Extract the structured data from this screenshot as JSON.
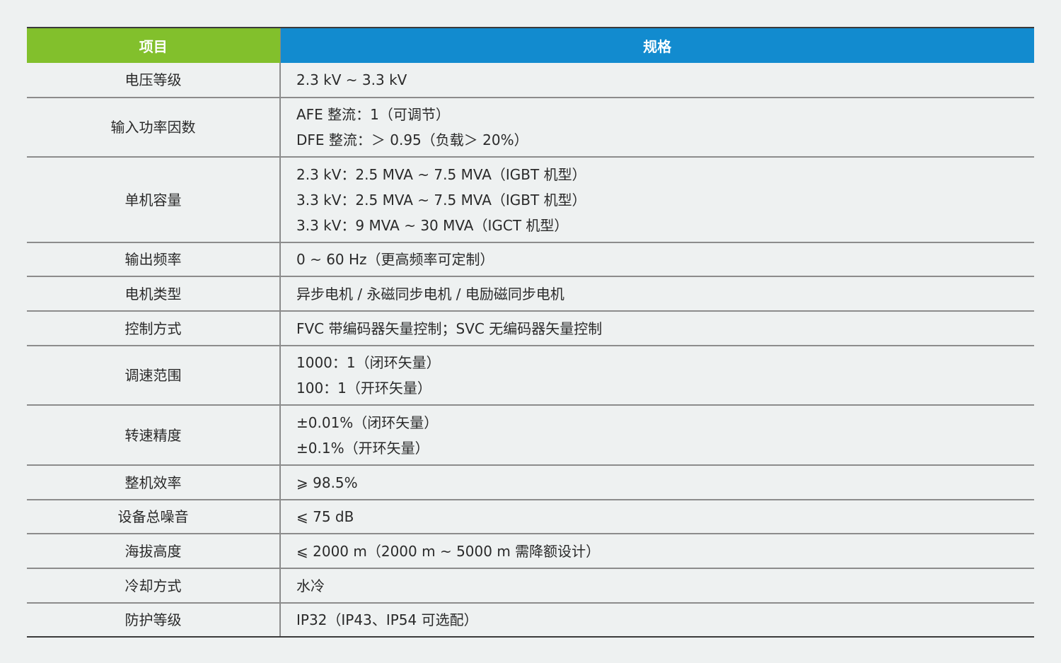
{
  "header": {
    "item": "项目",
    "spec": "规格"
  },
  "colors": {
    "item_header": "#82c02c",
    "spec_header": "#128bcf",
    "background": "#eef1f1"
  },
  "rows": [
    {
      "item": "电压等级",
      "spec": [
        "2.3 kV ~ 3.3 kV"
      ]
    },
    {
      "item": "输入功率因数",
      "spec": [
        "AFE 整流：1（可调节）",
        "DFE 整流：＞ 0.95（负载＞ 20%）"
      ]
    },
    {
      "item": "单机容量",
      "spec": [
        "2.3 kV：2.5 MVA ~ 7.5 MVA（IGBT 机型）",
        "3.3 kV：2.5 MVA ~ 7.5 MVA（IGBT 机型）",
        "3.3 kV：9 MVA ~ 30 MVA（IGCT 机型）"
      ]
    },
    {
      "item": "输出频率",
      "spec": [
        "0 ~ 60 Hz（更高频率可定制）"
      ]
    },
    {
      "item": "电机类型",
      "spec": [
        "异步电机 / 永磁同步电机 / 电励磁同步电机"
      ]
    },
    {
      "item": "控制方式",
      "spec": [
        "FVC 带编码器矢量控制；SVC 无编码器矢量控制"
      ]
    },
    {
      "item": "调速范围",
      "spec": [
        "1000：1（闭环矢量）",
        "100：1（开环矢量）"
      ]
    },
    {
      "item": "转速精度",
      "spec": [
        "±0.01%（闭环矢量）",
        "±0.1%（开环矢量）"
      ]
    },
    {
      "item": "整机效率",
      "spec": [
        "⩾ 98.5%"
      ]
    },
    {
      "item": "设备总噪音",
      "spec": [
        "⩽ 75 dB"
      ]
    },
    {
      "item": "海拔高度",
      "spec": [
        "⩽ 2000 m（2000 m ~ 5000 m 需降额设计）"
      ]
    },
    {
      "item": "冷却方式",
      "spec": [
        "水冷"
      ]
    },
    {
      "item": "防护等级",
      "spec": [
        "IP32（IP43、IP54 可选配）"
      ]
    }
  ]
}
